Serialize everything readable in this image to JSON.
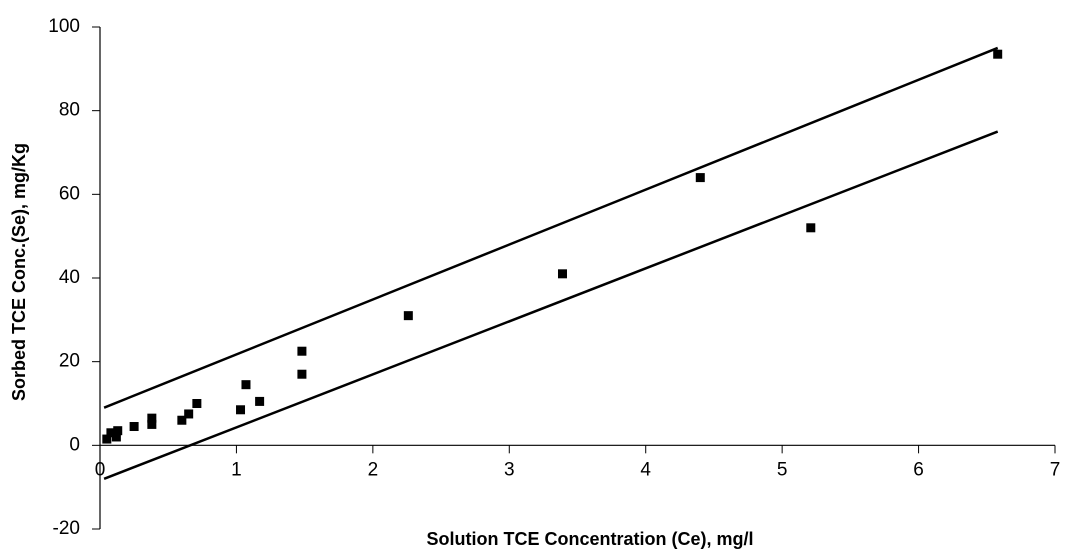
{
  "chart_data": {
    "type": "scatter",
    "x_label": "Solution TCE Concentration (Ce), mg/l",
    "y_label": "Sorbed TCE Conc.(Se),  mg/Kg",
    "xlim": [
      0,
      7
    ],
    "xticks": [
      0,
      1,
      2,
      3,
      4,
      5,
      6,
      7
    ],
    "ylim": [
      -20,
      100
    ],
    "yticks": [
      -20,
      0,
      20,
      40,
      60,
      80,
      100
    ],
    "grid": false,
    "series": [
      {
        "type": "scatter",
        "color": "#000000",
        "x": [
          0.05,
          0.08,
          0.12,
          0.13,
          0.25,
          0.38,
          0.38,
          0.6,
          0.65,
          0.71,
          1.03,
          1.07,
          1.17,
          1.48,
          1.48,
          2.26,
          3.39,
          4.4,
          5.21,
          6.58
        ],
        "values": [
          1.5,
          3,
          2,
          3.5,
          4.5,
          6.5,
          5,
          6,
          7.5,
          10,
          8.5,
          14.5,
          10.5,
          22.5,
          17,
          31,
          41,
          64,
          52,
          93.5
        ]
      },
      {
        "type": "line",
        "color": "#000000",
        "x": [
          0.03,
          6.58
        ],
        "values": [
          9,
          95
        ]
      },
      {
        "type": "line",
        "color": "#000000",
        "x": [
          0.03,
          6.58
        ],
        "values": [
          -8,
          75
        ]
      }
    ]
  }
}
